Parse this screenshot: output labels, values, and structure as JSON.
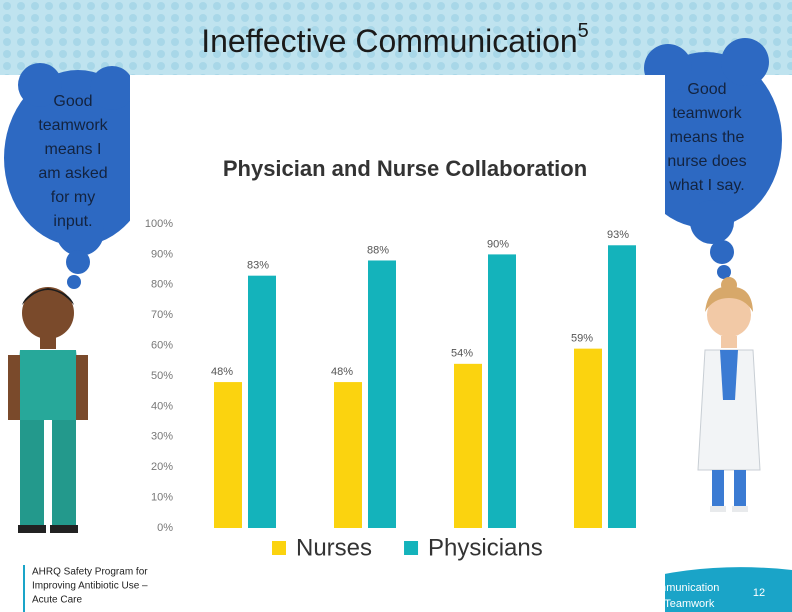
{
  "slide": {
    "title": "Ineffective Communication",
    "title_superscript": "5",
    "left_bubble": [
      "Good",
      "teamwork",
      "means I",
      "am asked",
      "for my",
      "input."
    ],
    "right_bubble": [
      "Good",
      "teamwork",
      "means the",
      "nurse does",
      "what I say."
    ],
    "footer_left": [
      "AHRQ Safety Program for",
      "Improving Antibiotic Use –",
      "Acute Care"
    ],
    "footer_right": [
      "Communication",
      "and Teamwork"
    ],
    "page_number": "12"
  },
  "chart_data": {
    "type": "bar",
    "title": "Physician and Nurse Collaboration",
    "categories": [
      null,
      null,
      null,
      null
    ],
    "series": [
      {
        "name": "Nurses",
        "color": "#fbd30f",
        "values": [
          48,
          48,
          54,
          59
        ],
        "value_labels": [
          "48%",
          "48%",
          "54%",
          "59%"
        ]
      },
      {
        "name": "Physicians",
        "color": "#14b3bb",
        "values": [
          83,
          88,
          90,
          93
        ],
        "value_labels": [
          "83%",
          "88%",
          "90%",
          "93%"
        ]
      }
    ],
    "ylim": [
      0,
      100
    ],
    "yticks": [
      {
        "value": 0,
        "label": "0%"
      },
      {
        "value": 10,
        "label": "10%"
      },
      {
        "value": 20,
        "label": "20%"
      },
      {
        "value": 30,
        "label": "30%"
      },
      {
        "value": 40,
        "label": "40%"
      },
      {
        "value": 50,
        "label": "50%"
      },
      {
        "value": 60,
        "label": "60%"
      },
      {
        "value": 70,
        "label": "70%"
      },
      {
        "value": 80,
        "label": "80%"
      },
      {
        "value": 90,
        "label": "90%"
      },
      {
        "value": 100,
        "label": "100%"
      }
    ],
    "grid": false,
    "legend": "bottom"
  }
}
